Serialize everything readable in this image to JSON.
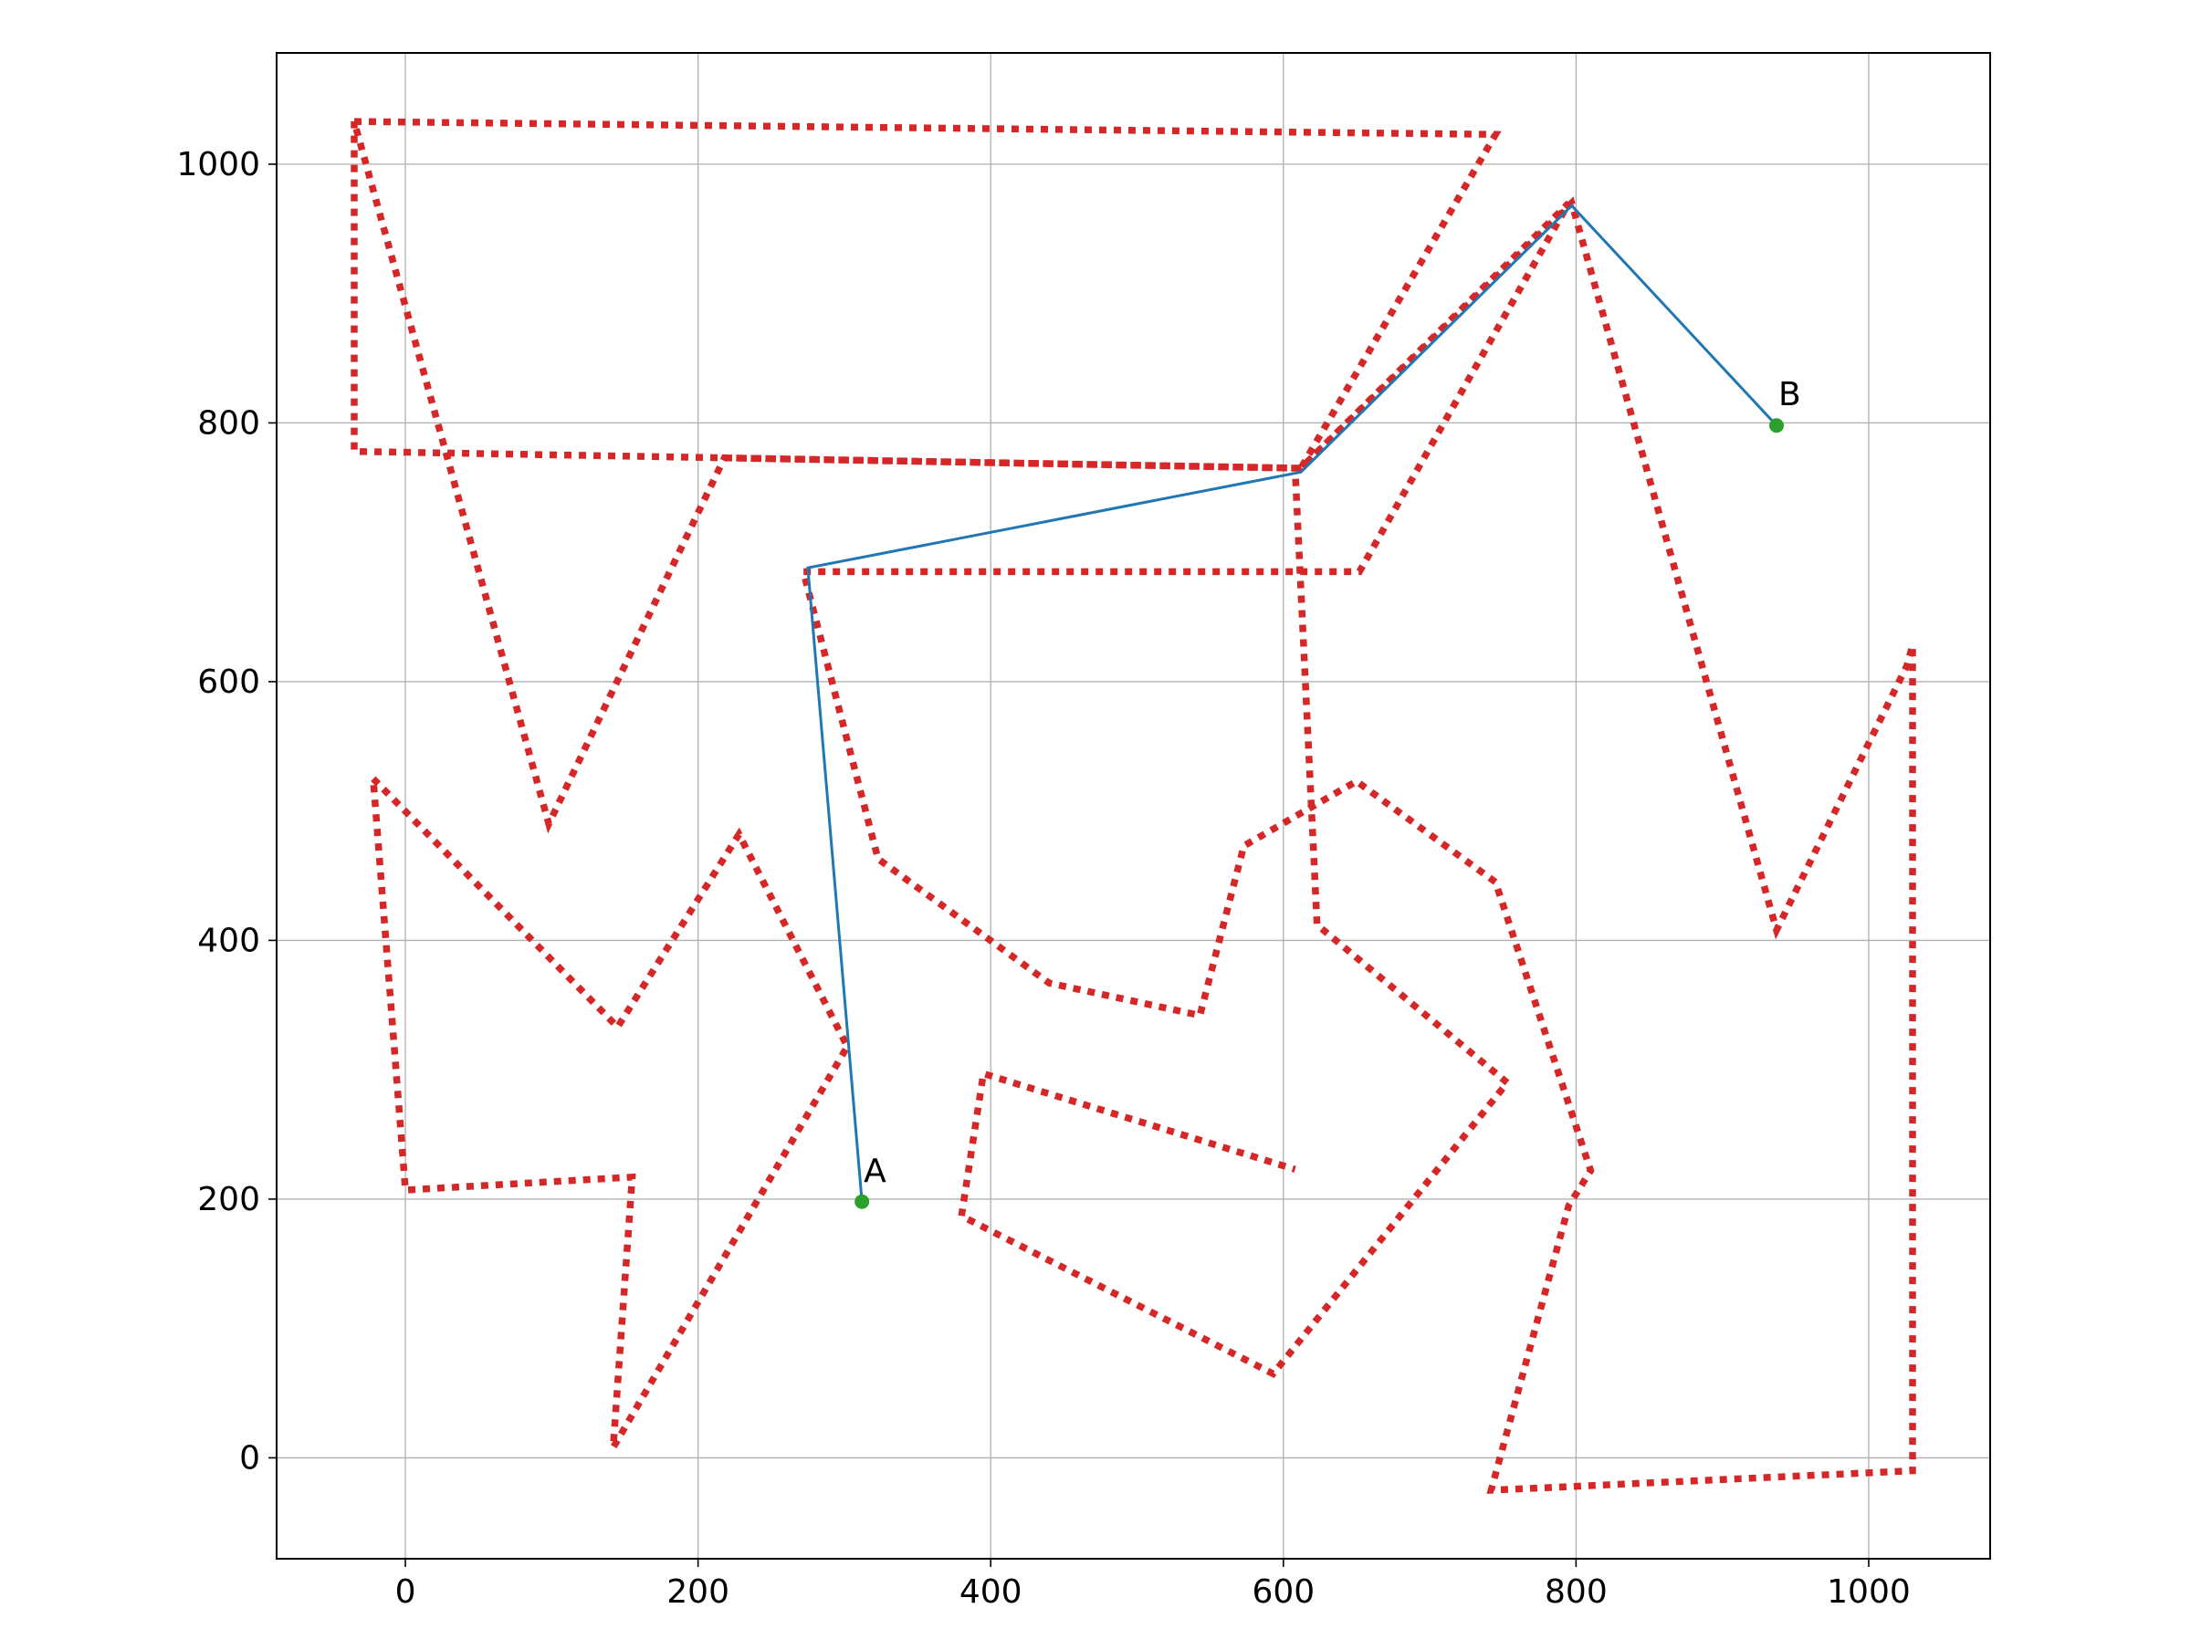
{
  "chart_data": {
    "type": "line",
    "title": "",
    "xlabel": "",
    "ylabel": "",
    "xlim": [
      -88,
      1083
    ],
    "ylim": [
      -78,
      1086
    ],
    "xticks": [
      0,
      200,
      400,
      600,
      800,
      1000
    ],
    "yticks": [
      0,
      200,
      400,
      600,
      800,
      1000
    ],
    "xtick_labels": [
      "0",
      "200",
      "400",
      "600",
      "800",
      "1000"
    ],
    "ytick_labels": [
      "0",
      "200",
      "400",
      "600",
      "800",
      "1000"
    ],
    "grid": true,
    "colors": {
      "obstacle": "#d62728",
      "path": "#1f77b4",
      "point": "#2ca02c",
      "grid": "#b0b0b0",
      "axes": "#000000"
    },
    "series": [
      {
        "style": "dotted",
        "role": "obstacle",
        "x": [
          -35,
          745,
          612,
          795,
          652,
          272,
          323,
          440,
          543,
          573,
          650,
          745,
          810,
          795,
          742,
          1030,
          1030,
          1026,
          937,
          797,
          612,
          218,
          -35,
          -35,
          98,
          218,
          608,
          623,
          753,
          593,
          380,
          395,
          608
        ],
        "y": [
          1033,
          1023,
          765,
          970,
          685,
          685,
          463,
          367,
          342,
          473,
          523,
          445,
          222,
          195,
          -25,
          -10,
          628,
          612,
          408,
          970,
          765,
          773,
          778,
          1033,
          490,
          773,
          765,
          412,
          290,
          65,
          187,
          297,
          223
        ]
      },
      {
        "style": "dotted",
        "role": "obstacle",
        "x": [
          -22,
          145,
          228,
          302,
          142,
          155,
          0,
          -22
        ],
        "y": [
          525,
          333,
          482,
          318,
          8,
          217,
          207,
          525
        ]
      },
      {
        "style": "solid",
        "role": "path",
        "x": [
          312,
          275,
          612,
          797,
          937
        ],
        "y": [
          198,
          688,
          762,
          968,
          798
        ]
      }
    ],
    "points": [
      {
        "label": "A",
        "x": 312,
        "y": 198
      },
      {
        "label": "B",
        "x": 937,
        "y": 798
      }
    ]
  }
}
